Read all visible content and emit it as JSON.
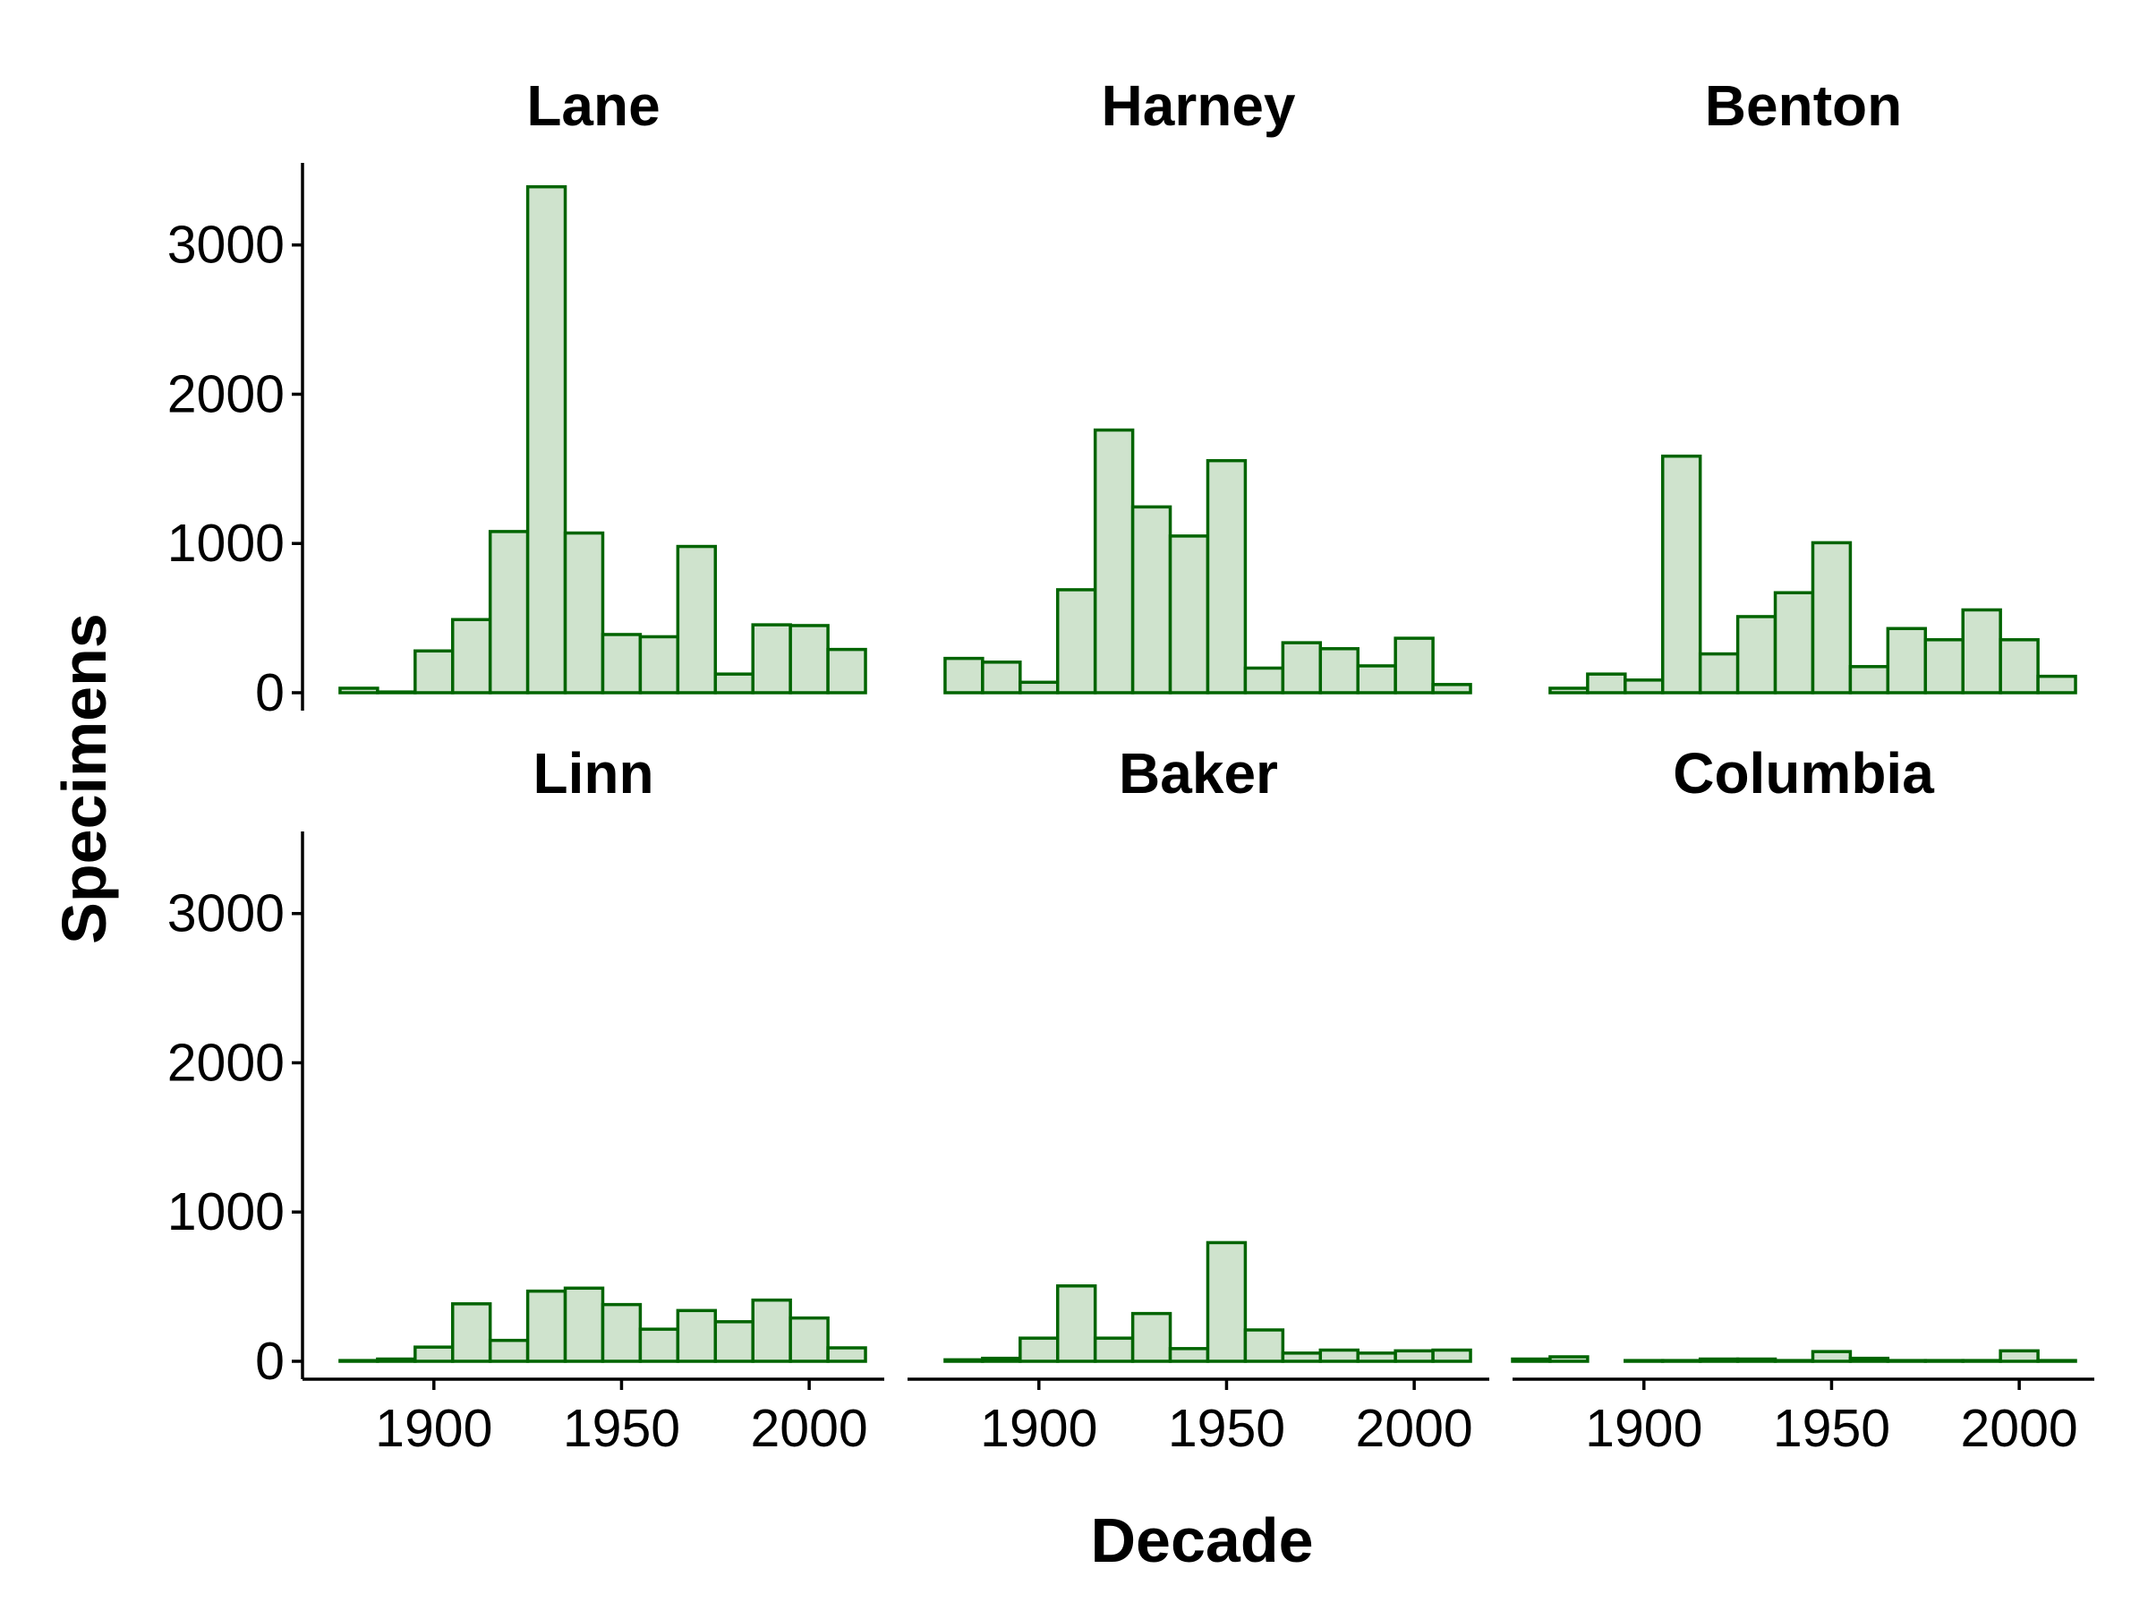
{
  "chart_data": {
    "type": "bar",
    "xlabel": "Decade",
    "ylabel": "Specimens",
    "xlim": [
      1865,
      2020
    ],
    "ylim": [
      -120,
      3550
    ],
    "x_ticks": [
      1900,
      1950,
      2000
    ],
    "y_ticks": [
      0,
      1000,
      2000,
      3000
    ],
    "bin_width": 10,
    "bar_fill": "#cfe3cd",
    "bar_stroke": "#006400",
    "panels": [
      {
        "name": "Lane",
        "bins": [
          {
            "x": 1880,
            "y": 30
          },
          {
            "x": 1890,
            "y": 5
          },
          {
            "x": 1900,
            "y": 280
          },
          {
            "x": 1910,
            "y": 490
          },
          {
            "x": 1920,
            "y": 1080
          },
          {
            "x": 1930,
            "y": 3390
          },
          {
            "x": 1940,
            "y": 1070
          },
          {
            "x": 1950,
            "y": 390
          },
          {
            "x": 1960,
            "y": 375
          },
          {
            "x": 1970,
            "y": 980
          },
          {
            "x": 1980,
            "y": 125
          },
          {
            "x": 1990,
            "y": 455
          },
          {
            "x": 2000,
            "y": 450
          },
          {
            "x": 2010,
            "y": 290
          }
        ]
      },
      {
        "name": "Harney",
        "bins": [
          {
            "x": 1880,
            "y": 230
          },
          {
            "x": 1890,
            "y": 205
          },
          {
            "x": 1900,
            "y": 70
          },
          {
            "x": 1910,
            "y": 690
          },
          {
            "x": 1920,
            "y": 1760
          },
          {
            "x": 1930,
            "y": 1245
          },
          {
            "x": 1940,
            "y": 1050
          },
          {
            "x": 1950,
            "y": 1555
          },
          {
            "x": 1960,
            "y": 165
          },
          {
            "x": 1970,
            "y": 335
          },
          {
            "x": 1980,
            "y": 295
          },
          {
            "x": 1990,
            "y": 180
          },
          {
            "x": 2000,
            "y": 365
          },
          {
            "x": 2010,
            "y": 55
          }
        ]
      },
      {
        "name": "Benton",
        "bins": [
          {
            "x": 1880,
            "y": 30
          },
          {
            "x": 1890,
            "y": 125
          },
          {
            "x": 1900,
            "y": 85
          },
          {
            "x": 1910,
            "y": 1585
          },
          {
            "x": 1920,
            "y": 260
          },
          {
            "x": 1930,
            "y": 510
          },
          {
            "x": 1940,
            "y": 670
          },
          {
            "x": 1950,
            "y": 1005
          },
          {
            "x": 1960,
            "y": 175
          },
          {
            "x": 1970,
            "y": 430
          },
          {
            "x": 1980,
            "y": 355
          },
          {
            "x": 1990,
            "y": 555
          },
          {
            "x": 2000,
            "y": 355
          },
          {
            "x": 2010,
            "y": 110
          }
        ]
      },
      {
        "name": "Linn",
        "bins": [
          {
            "x": 1880,
            "y": 5
          },
          {
            "x": 1890,
            "y": 15
          },
          {
            "x": 1900,
            "y": 95
          },
          {
            "x": 1910,
            "y": 385
          },
          {
            "x": 1920,
            "y": 140
          },
          {
            "x": 1930,
            "y": 470
          },
          {
            "x": 1940,
            "y": 490
          },
          {
            "x": 1950,
            "y": 380
          },
          {
            "x": 1960,
            "y": 215
          },
          {
            "x": 1970,
            "y": 340
          },
          {
            "x": 1980,
            "y": 265
          },
          {
            "x": 1990,
            "y": 410
          },
          {
            "x": 2000,
            "y": 290
          },
          {
            "x": 2010,
            "y": 90
          }
        ]
      },
      {
        "name": "Baker",
        "bins": [
          {
            "x": 1880,
            "y": 10
          },
          {
            "x": 1890,
            "y": 20
          },
          {
            "x": 1900,
            "y": 155
          },
          {
            "x": 1910,
            "y": 505
          },
          {
            "x": 1920,
            "y": 155
          },
          {
            "x": 1930,
            "y": 320
          },
          {
            "x": 1940,
            "y": 85
          },
          {
            "x": 1950,
            "y": 795
          },
          {
            "x": 1960,
            "y": 210
          },
          {
            "x": 1970,
            "y": 55
          },
          {
            "x": 1980,
            "y": 75
          },
          {
            "x": 1990,
            "y": 55
          },
          {
            "x": 2000,
            "y": 70
          },
          {
            "x": 2010,
            "y": 75
          }
        ]
      },
      {
        "name": "Columbia",
        "bins": [
          {
            "x": 1870,
            "y": 15
          },
          {
            "x": 1880,
            "y": 30
          },
          {
            "x": 1900,
            "y": 5
          },
          {
            "x": 1910,
            "y": 5
          },
          {
            "x": 1920,
            "y": 15
          },
          {
            "x": 1930,
            "y": 15
          },
          {
            "x": 1940,
            "y": 5
          },
          {
            "x": 1950,
            "y": 65
          },
          {
            "x": 1960,
            "y": 20
          },
          {
            "x": 1970,
            "y": 5
          },
          {
            "x": 1980,
            "y": 5
          },
          {
            "x": 1990,
            "y": 5
          },
          {
            "x": 2000,
            "y": 70
          },
          {
            "x": 2010,
            "y": 5
          }
        ]
      }
    ]
  }
}
